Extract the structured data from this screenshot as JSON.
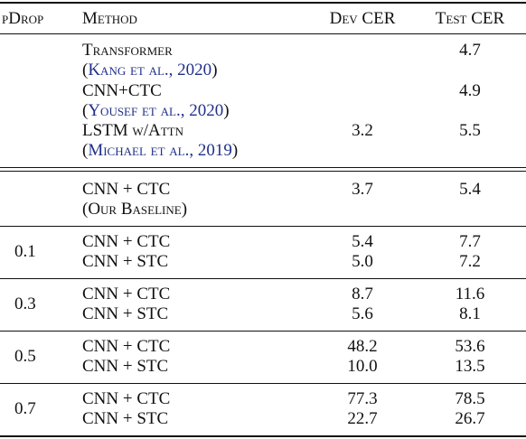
{
  "headers": {
    "pdrop": "pDrop",
    "method": "Method",
    "dev": "Dev CER",
    "test": "Test CER"
  },
  "prior_work": [
    {
      "method": "Transformer",
      "cite_text": "Kang et al., 2020",
      "dev": "",
      "test": "4.7"
    },
    {
      "method": "CNN+CTC",
      "cite_text": "Yousef et al., 2020",
      "dev": "",
      "test": "4.9"
    },
    {
      "method": "LSTM w/Attn",
      "cite_text": "Michael et al., 2019",
      "dev": "3.2",
      "test": "5.5"
    }
  ],
  "baseline": {
    "method": "CNN + CTC",
    "note": "(Our Baseline)",
    "dev": "3.7",
    "test": "5.4"
  },
  "groups": [
    {
      "pdrop": "0.1",
      "rows": [
        {
          "method": "CNN + CTC",
          "dev": "5.4",
          "test": "7.7"
        },
        {
          "method": "CNN + STC",
          "dev": "5.0",
          "test": "7.2"
        }
      ]
    },
    {
      "pdrop": "0.3",
      "rows": [
        {
          "method": "CNN + CTC",
          "dev": "8.7",
          "test": "11.6"
        },
        {
          "method": "CNN + STC",
          "dev": "5.6",
          "test": "8.1"
        }
      ]
    },
    {
      "pdrop": "0.5",
      "rows": [
        {
          "method": "CNN + CTC",
          "dev": "48.2",
          "test": "53.6"
        },
        {
          "method": "CNN + STC",
          "dev": "10.0",
          "test": "13.5"
        }
      ]
    },
    {
      "pdrop": "0.7",
      "rows": [
        {
          "method": "CNN + CTC",
          "dev": "77.3",
          "test": "78.5"
        },
        {
          "method": "CNN + STC",
          "dev": "22.7",
          "test": "26.7"
        }
      ]
    }
  ]
}
